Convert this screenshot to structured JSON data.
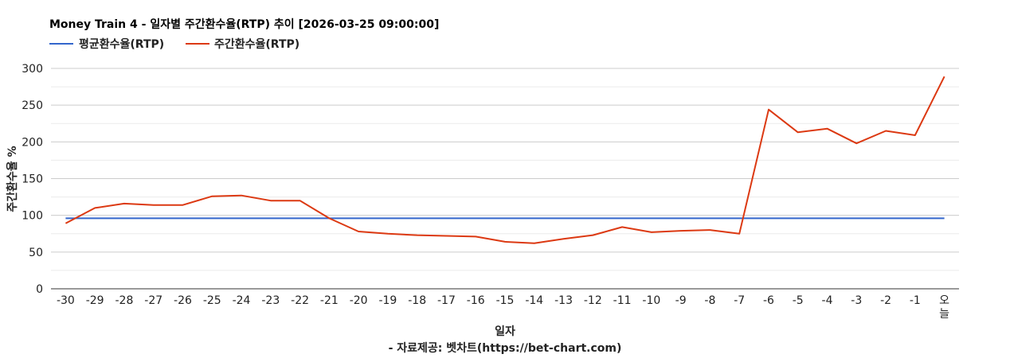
{
  "chart_data": {
    "type": "line",
    "title": "Money Train 4 - 일자별 주간환수율(RTP) 추이 [2026-03-25 09:00:00]",
    "xlabel": "일자",
    "ylabel": "주간환수율 %",
    "footer": "- 자료제공: 벳차트(https://bet-chart.com)",
    "ylim": [
      0,
      300
    ],
    "yticks": [
      "300",
      "250",
      "200",
      "150",
      "100",
      "50",
      "0"
    ],
    "grid": true,
    "legend_position": "top-left",
    "categories": [
      "-30",
      "-29",
      "-28",
      "-27",
      "-26",
      "-25",
      "-24",
      "-23",
      "-22",
      "-21",
      "-20",
      "-19",
      "-18",
      "-17",
      "-16",
      "-15",
      "-14",
      "-13",
      "-12",
      "-11",
      "-10",
      "-9",
      "-8",
      "-7",
      "-6",
      "-5",
      "-4",
      "-3",
      "-2",
      "-1",
      "오늘"
    ],
    "series": [
      {
        "name": "평균환수율(RTP)",
        "color": "#3366cc",
        "values": [
          96,
          96,
          96,
          96,
          96,
          96,
          96,
          96,
          96,
          96,
          96,
          96,
          96,
          96,
          96,
          96,
          96,
          96,
          96,
          96,
          96,
          96,
          96,
          96,
          96,
          96,
          96,
          96,
          96,
          96,
          96
        ]
      },
      {
        "name": "주간환수율(RTP)",
        "color": "#dc3912",
        "values": [
          89,
          110,
          116,
          114,
          114,
          126,
          127,
          120,
          120,
          96,
          78,
          75,
          73,
          72,
          71,
          64,
          62,
          68,
          73,
          84,
          77,
          79,
          80,
          75,
          244,
          213,
          218,
          198,
          215,
          209,
          289
        ]
      }
    ]
  }
}
